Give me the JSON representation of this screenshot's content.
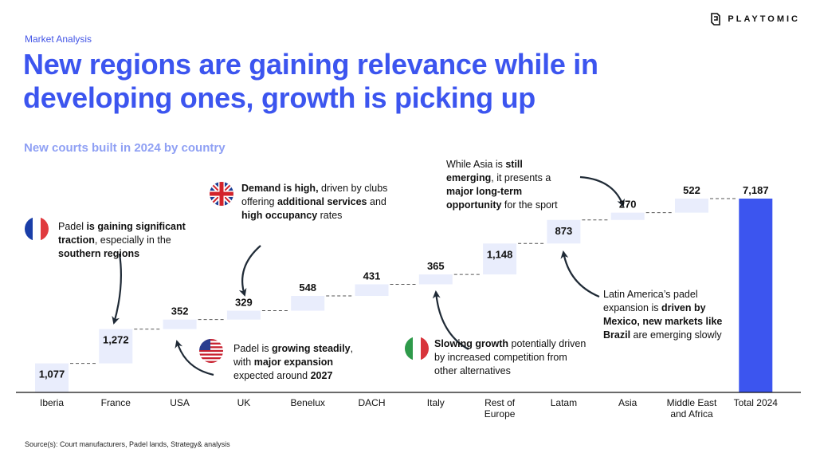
{
  "brand": {
    "name": "PLAYTOMIC"
  },
  "header": {
    "section": "Market Analysis",
    "title": "New regions are gaining relevance while in developing ones, growth is picking up",
    "subtitle": "New courts built in 2024 by country"
  },
  "footer": {
    "source": "Source(s): Court manufacturers, Padel lands, Strategy& analysis"
  },
  "colors": {
    "accent": "#3c55ef",
    "step": "#e9edfc",
    "total_bar": "#3c55ef",
    "connector": "#555555"
  },
  "chart_data": {
    "type": "bar",
    "subtype": "waterfall",
    "title": "New courts built in 2024 by country",
    "categories": [
      [
        "Iberia"
      ],
      [
        "France"
      ],
      [
        "USA"
      ],
      [
        "UK"
      ],
      [
        "Benelux"
      ],
      [
        "DACH"
      ],
      [
        "Italy"
      ],
      [
        "Rest of",
        "Europe"
      ],
      [
        "Latam"
      ],
      [
        "Asia"
      ],
      [
        "Middle East",
        "and Africa"
      ],
      [
        "Total 2024"
      ]
    ],
    "values": [
      1077,
      1272,
      352,
      329,
      548,
      431,
      365,
      1148,
      873,
      270,
      522,
      7187
    ],
    "labels": [
      "1,077",
      "1,272",
      "352",
      "329",
      "548",
      "431",
      "365",
      "1,148",
      "873",
      "270",
      "522",
      "7,187"
    ],
    "total_index": 11,
    "ylim": [
      0,
      7187
    ],
    "grid": false,
    "legend": "none"
  },
  "annotations": [
    {
      "id": "france",
      "flag": "france-flag",
      "segments": [
        {
          "t": "Padel "
        },
        {
          "t": "is gaining significant traction",
          "b": true
        },
        {
          "t": ", especially in the "
        },
        {
          "t": "southern regions",
          "b": true
        }
      ]
    },
    {
      "id": "uk",
      "flag": "uk-flag",
      "segments": [
        {
          "t": "Demand is high,",
          "b": true
        },
        {
          "t": " driven by clubs offering "
        },
        {
          "t": "additional services",
          "b": true
        },
        {
          "t": " and "
        },
        {
          "t": "high occupancy",
          "b": true
        },
        {
          "t": " rates"
        }
      ]
    },
    {
      "id": "usa",
      "flag": "usa-flag",
      "segments": [
        {
          "t": "Padel is "
        },
        {
          "t": "growing steadily",
          "b": true
        },
        {
          "t": ", with "
        },
        {
          "t": "major expansion",
          "b": true
        },
        {
          "t": " expected around "
        },
        {
          "t": "2027",
          "b": true
        }
      ]
    },
    {
      "id": "italy",
      "flag": "italy-flag",
      "segments": [
        {
          "t": "Slowing growth",
          "b": true
        },
        {
          "t": " potentially driven by increased competition from other alternatives"
        }
      ]
    },
    {
      "id": "asia",
      "segments": [
        {
          "t": "While Asia is "
        },
        {
          "t": "still emerging",
          "b": true
        },
        {
          "t": ", it presents a "
        },
        {
          "t": "major long-term opportunity",
          "b": true
        },
        {
          "t": " for the sport"
        }
      ]
    },
    {
      "id": "latam",
      "segments": [
        {
          "t": "Latin America’s padel expansion is "
        },
        {
          "t": "driven by Mexico, new markets like Brazil",
          "b": true
        },
        {
          "t": " are emerging slowly"
        }
      ]
    }
  ]
}
